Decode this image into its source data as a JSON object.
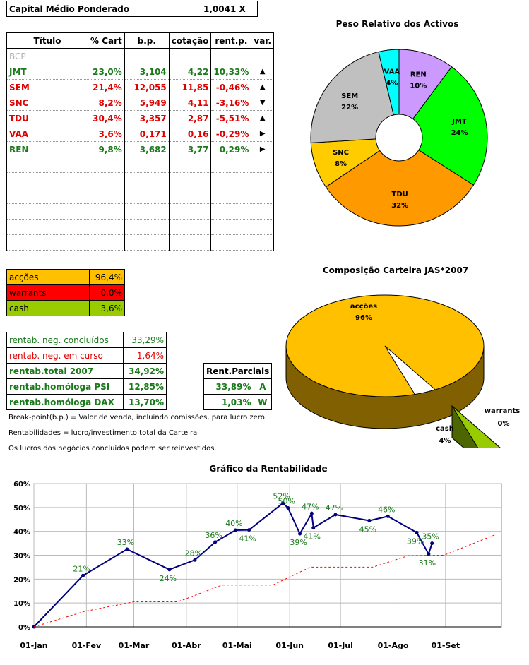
{
  "header": {
    "label": "Capital Médio Ponderado",
    "value": "1,0041 X"
  },
  "holdings": {
    "columns": [
      "Título",
      "% Cart",
      "b.p.",
      "cotação",
      "rent.p.",
      "var."
    ],
    "rows": [
      {
        "title": "BCP",
        "pct": "",
        "bp": "",
        "quote": "",
        "rent": "",
        "var": "",
        "color": "gray"
      },
      {
        "title": "JMT",
        "pct": "23,0%",
        "bp": "3,104",
        "quote": "4,22",
        "rent": "10,33%",
        "var": "▲",
        "color": "green"
      },
      {
        "title": "SEM",
        "pct": "21,4%",
        "bp": "12,055",
        "quote": "11,85",
        "rent": "-0,46%",
        "var": "▲",
        "color": "red"
      },
      {
        "title": "SNC",
        "pct": "8,2%",
        "bp": "5,949",
        "quote": "4,11",
        "rent": "-3,16%",
        "var": "▼",
        "color": "red"
      },
      {
        "title": "TDU",
        "pct": "30,4%",
        "bp": "3,357",
        "quote": "2,87",
        "rent": "-5,51%",
        "var": "▲",
        "color": "red"
      },
      {
        "title": "VAA",
        "pct": "3,6%",
        "bp": "0,171",
        "quote": "0,16",
        "rent": "-0,29%",
        "var": "▶",
        "color": "red"
      },
      {
        "title": "REN",
        "pct": "9,8%",
        "bp": "3,682",
        "quote": "3,77",
        "rent": "0,29%",
        "var": "▶",
        "color": "green"
      }
    ],
    "empty_rows": 6
  },
  "allocation": [
    {
      "label": "acções",
      "value": "96,4%",
      "bg": "#ffc000"
    },
    {
      "label": "warrants",
      "value": "0,0%",
      "bg": "#ff0000"
    },
    {
      "label": "cash",
      "value": "3,6%",
      "bg": "#99cc00"
    }
  ],
  "returns": [
    {
      "label": "rentab. neg. concluídos",
      "value": "33,29%",
      "color": "#1a7a1a",
      "bold": false
    },
    {
      "label": "rentab. neg. em curso",
      "value": "1,64%",
      "color": "#e00000",
      "bold": false
    },
    {
      "label": "rentab.total 2007",
      "value": "34,92%",
      "color": "#1a7a1a",
      "bold": true
    },
    {
      "label": "rentab.homóloga PSI",
      "value": "12,85%",
      "color": "#1a7a1a",
      "bold": true
    },
    {
      "label": "rentab.homóloga DAX",
      "value": "13,70%",
      "color": "#1a7a1a",
      "bold": true
    }
  ],
  "partials": {
    "header": "Rent.Parciais",
    "rows": [
      {
        "value": "33,89%",
        "code": "A"
      },
      {
        "value": "1,03%",
        "code": "W"
      }
    ]
  },
  "notes": [
    "Break-point(b.p.) = Valor de venda, incluindo comissões, para lucro zero",
    "Rentabilidades = lucro/investimento total da Carteira",
    "Os lucros dos negócios concluídos podem ser reinvestidos."
  ],
  "chart_data": [
    {
      "type": "pie",
      "title": "Peso Relativo dos Activos",
      "slices": [
        {
          "label": "REN",
          "percent_label": "10%",
          "value": 9.8,
          "color": "#cc99ff"
        },
        {
          "label": "JMT",
          "percent_label": "24%",
          "value": 23.0,
          "color": "#00ff00"
        },
        {
          "label": "TDU",
          "percent_label": "32%",
          "value": 30.4,
          "color": "#ff9900"
        },
        {
          "label": "SNC",
          "percent_label": "8%",
          "value": 8.2,
          "color": "#ffcc00"
        },
        {
          "label": "SEM",
          "percent_label": "22%",
          "value": 21.4,
          "color": "#c0c0c0"
        },
        {
          "label": "VAA",
          "percent_label": "4%",
          "value": 3.6,
          "color": "#00ffff"
        }
      ]
    },
    {
      "type": "pie",
      "title": "Composição Carteira JAS*2007",
      "slices": [
        {
          "label": "acções",
          "percent_label": "96%",
          "value": 96.4,
          "color": "#ffc000"
        },
        {
          "label": "warrants",
          "percent_label": "0%",
          "value": 0.0,
          "color": "#ff0000"
        },
        {
          "label": "cash",
          "percent_label": "4%",
          "value": 3.6,
          "color": "#99cc00"
        }
      ]
    },
    {
      "type": "line",
      "title": "Gráfico da Rentabilidade",
      "x_ticks": [
        "01-Jan",
        "01-Fev",
        "01-Mar",
        "01-Abr",
        "01-Mai",
        "01-Jun",
        "01-Jul",
        "01-Ago",
        "01-Set"
      ],
      "y_ticks": [
        "0%",
        "10%",
        "20%",
        "30%",
        "40%",
        "50%",
        "60%"
      ],
      "ylim": [
        0,
        60
      ],
      "series": [
        {
          "style": "solid",
          "color": "#000080",
          "points": [
            {
              "x": "01-Jan",
              "y": 0,
              "label": ""
            },
            {
              "x": "30-Jan",
              "y": 21.5,
              "label": "21%"
            },
            {
              "x": "25-Fev",
              "y": 32.5,
              "label": "33%"
            },
            {
              "x": "22-Mar",
              "y": 24,
              "label": "24%"
            },
            {
              "x": "06-Abr",
              "y": 28,
              "label": "28%"
            },
            {
              "x": "18-Abr",
              "y": 35.5,
              "label": "36%"
            },
            {
              "x": "30-Abr",
              "y": 40.5,
              "label": "40%"
            },
            {
              "x": "08-Mai",
              "y": 40.6,
              "label": "41%"
            },
            {
              "x": "28-Mai",
              "y": 51.8,
              "label": "52%"
            },
            {
              "x": "31-Mai",
              "y": 49.8,
              "label": "50%"
            },
            {
              "x": "07-Jun",
              "y": 39,
              "label": "39%"
            },
            {
              "x": "14-Jun",
              "y": 47.5,
              "label": "47%"
            },
            {
              "x": "15-Jun",
              "y": 41.5,
              "label": "41%"
            },
            {
              "x": "28-Jun",
              "y": 47,
              "label": "47%"
            },
            {
              "x": "18-Jul",
              "y": 44.5,
              "label": "45%"
            },
            {
              "x": "29-Jul",
              "y": 46.3,
              "label": "46%"
            },
            {
              "x": "15-Ago",
              "y": 39.5,
              "label": "39%"
            },
            {
              "x": "22-Ago",
              "y": 30.5,
              "label": "31%"
            },
            {
              "x": "24-Ago",
              "y": 35,
              "label": "35%"
            }
          ]
        },
        {
          "style": "dashed",
          "color": "#ff0000",
          "points": [
            {
              "x": "01-Jan",
              "y": 0
            },
            {
              "x": "31-Jan",
              "y": 6.5
            },
            {
              "x": "01-Mar",
              "y": 10.5
            },
            {
              "x": "27-Mar",
              "y": 10.5
            },
            {
              "x": "22-Abr",
              "y": 17.5
            },
            {
              "x": "22-Mai",
              "y": 17.5
            },
            {
              "x": "13-Jun",
              "y": 25
            },
            {
              "x": "20-Jul",
              "y": 25
            },
            {
              "x": "10-Ago",
              "y": 29.8
            },
            {
              "x": "31-Ago",
              "y": 30
            },
            {
              "x": "30-Set",
              "y": 38.5
            }
          ]
        }
      ]
    }
  ]
}
